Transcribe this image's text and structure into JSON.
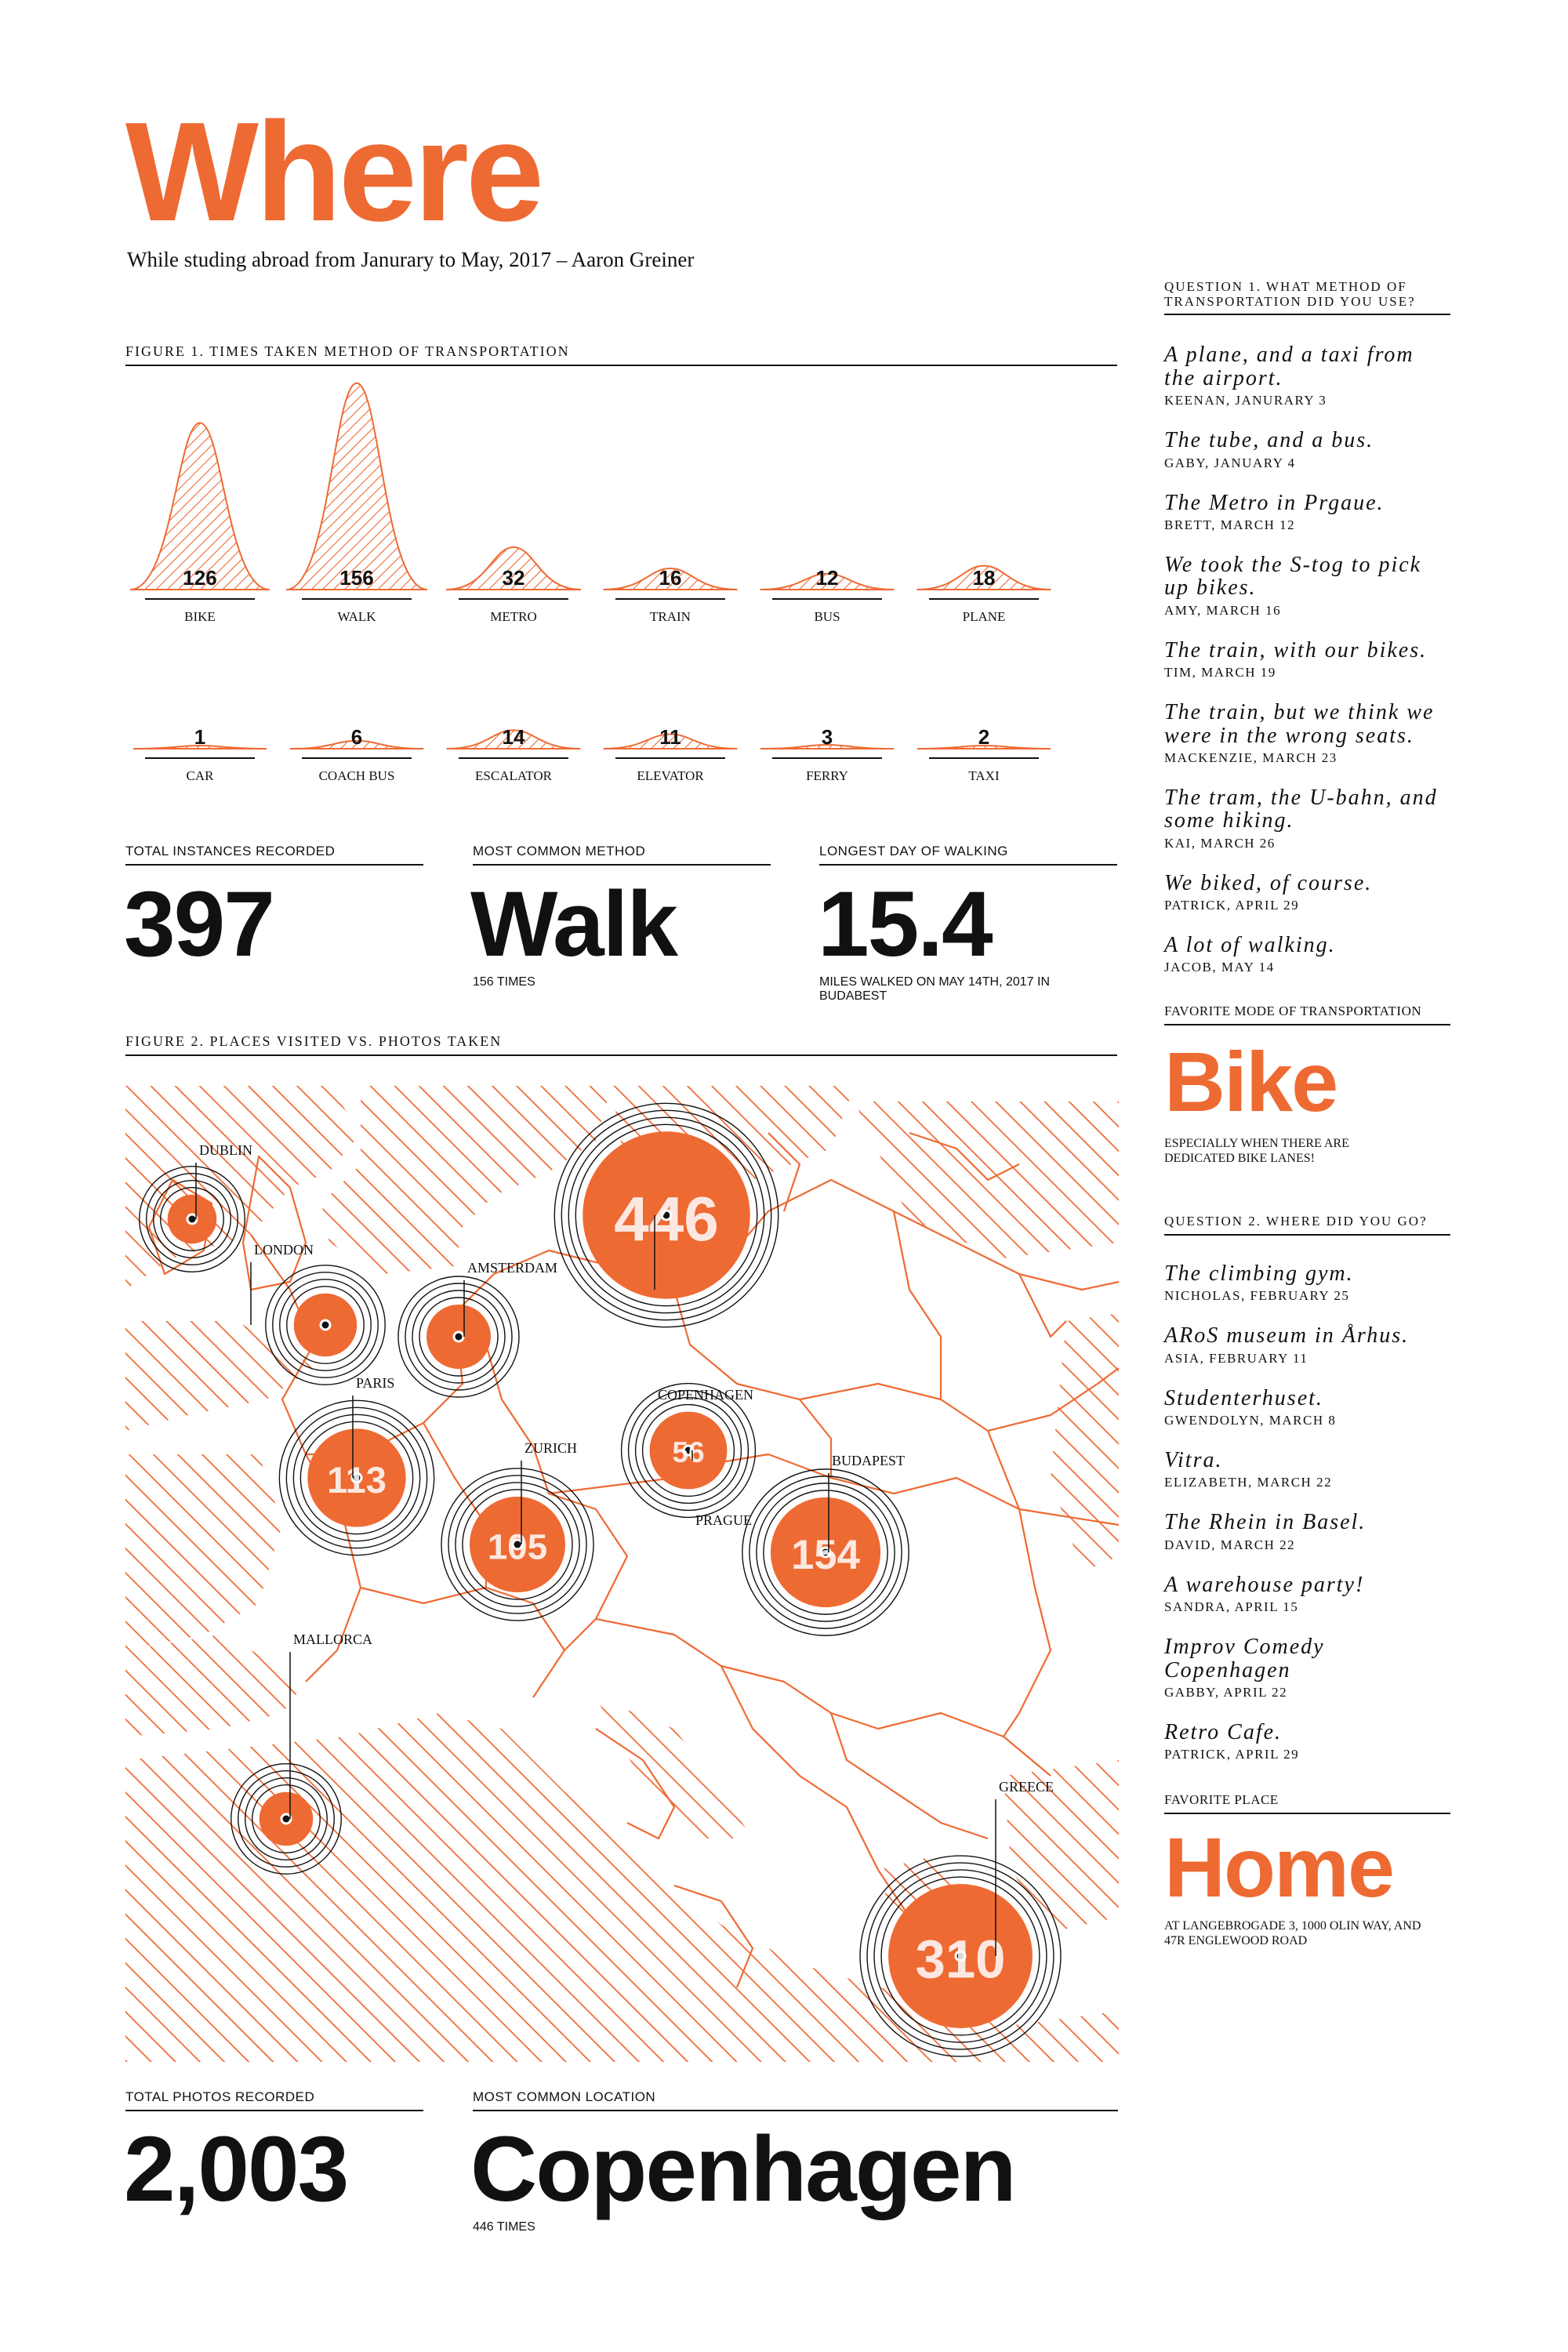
{
  "header": {
    "title": "Where",
    "subtitle": "While studing abroad from Janurary to May, 2017 – Aaron Greiner"
  },
  "figure1": {
    "label": "FIGURE 1. TIMES TAKEN METHOD OF TRANSPORTATION"
  },
  "figure2": {
    "label": "FIGURE 2. PLACES VISITED VS. PHOTOS TAKEN"
  },
  "chart_data": [
    {
      "type": "area",
      "title": "FIGURE 1. TIMES TAKEN METHOD OF TRANSPORTATION",
      "categories": [
        "BIKE",
        "WALK",
        "METRO",
        "TRAIN",
        "BUS",
        "PLANE",
        "CAR",
        "COACH BUS",
        "ESCALATOR",
        "ELEVATOR",
        "FERRY",
        "TAXI"
      ],
      "values": [
        126,
        156,
        32,
        16,
        12,
        18,
        1,
        6,
        14,
        11,
        3,
        2
      ],
      "labels": [
        "126",
        "156",
        "32",
        "16",
        "12",
        "18",
        "1",
        "6",
        "14",
        "11",
        "3",
        "2"
      ],
      "ylim": [
        0,
        160
      ],
      "grid": false
    },
    {
      "type": "scatter",
      "title": "FIGURE 2. PLACES VISITED VS. PHOTOS TAKEN",
      "places": [
        {
          "name": "DUBLIN",
          "photos": "",
          "value": 10
        },
        {
          "name": "LONDON",
          "photos": "",
          "value": 28
        },
        {
          "name": "AMSTERDAM",
          "photos": "",
          "value": 30
        },
        {
          "name": "PARIS",
          "photos": "113",
          "value": 113
        },
        {
          "name": "COPENHAGEN",
          "photos": "446",
          "value": 446
        },
        {
          "name": "ZURICH",
          "photos": "105",
          "value": 105
        },
        {
          "name": "PRAGUE",
          "photos": "56",
          "value": 56
        },
        {
          "name": "BUDAPEST",
          "photos": "154",
          "value": 154
        },
        {
          "name": "MALLORCA",
          "photos": "",
          "value": 15
        },
        {
          "name": "GREECE",
          "photos": "310",
          "value": 310
        }
      ]
    }
  ],
  "stats": {
    "total_label": "TOTAL INSTANCES RECORDED",
    "total_value": "397",
    "common_label": "MOST COMMON METHOD",
    "common_value": "Walk",
    "common_sub": "156 TIMES",
    "longest_label": "LONGEST DAY OF WALKING",
    "longest_value": "15.4",
    "longest_sub": "MILES WALKED ON MAY 14TH, 2017 IN BUDABEST"
  },
  "bottom_stats": {
    "photos_label": "TOTAL PHOTOS RECORDED",
    "photos_value": "2,003",
    "location_label": "MOST COMMON LOCATION",
    "location_value": "Copenhagen",
    "location_sub": "446 TIMES"
  },
  "sidebar": {
    "q1_label": "QUESTION 1. WHAT METHOD OF TRANSPORTATION DID YOU USE?",
    "q1_answers": [
      {
        "text": "A plane, and a taxi from the airport.",
        "who": "KEENAN, JANURARY 3"
      },
      {
        "text": "The tube, and a bus.",
        "who": "GABY, JANUARY 4"
      },
      {
        "text": "The Metro in Prgaue.",
        "who": "BRETT, MARCH 12"
      },
      {
        "text": "We took the S-tog to pick up bikes.",
        "who": "AMY, MARCH 16"
      },
      {
        "text": "The train, with our bikes.",
        "who": "TIM, MARCH 19"
      },
      {
        "text": "The train, but we think we were in the wrong seats.",
        "who": "MACKENZIE, MARCH 23"
      },
      {
        "text": "The tram, the U-bahn, and some hiking.",
        "who": "KAI, MARCH 26"
      },
      {
        "text": "We biked, of course.",
        "who": "PATRICK, APRIL 29"
      },
      {
        "text": "A lot of walking.",
        "who": "JACOB, MAY 14"
      }
    ],
    "fav_mode_label": "FAVORITE MODE OF TRANSPORTATION",
    "fav_mode_value": "Bike",
    "fav_mode_sub": "ESPECIALLY WHEN THERE ARE DEDICATED BIKE LANES!",
    "q2_label": "QUESTION 2. WHERE DID YOU GO?",
    "q2_answers": [
      {
        "text": "The climbing gym.",
        "who": "NICHOLAS, FEBRUARY 25"
      },
      {
        "text": "ARoS museum in Århus.",
        "who": "ASIA, FEBRUARY 11"
      },
      {
        "text": "Studenterhuset.",
        "who": "GWENDOLYN, MARCH 8"
      },
      {
        "text": "Vitra.",
        "who": "ELIZABETH, MARCH 22"
      },
      {
        "text": "The Rhein in Basel.",
        "who": "DAVID, MARCH 22"
      },
      {
        "text": "A warehouse party!",
        "who": "SANDRA, APRIL 15"
      },
      {
        "text": "Improv Comedy Copenhagen",
        "who": "GABBY, APRIL 22"
      },
      {
        "text": "Retro Cafe.",
        "who": "PATRICK, APRIL 29"
      }
    ],
    "fav_place_label": "FAVORITE PLACE",
    "fav_place_value": "Home",
    "fav_place_sub": "AT LANGEBROGADE 3, 1000 OLIN WAY, AND 47R ENGLEWOOD ROAD"
  },
  "colors": {
    "accent": "#ee6a33",
    "ink": "#111111"
  }
}
